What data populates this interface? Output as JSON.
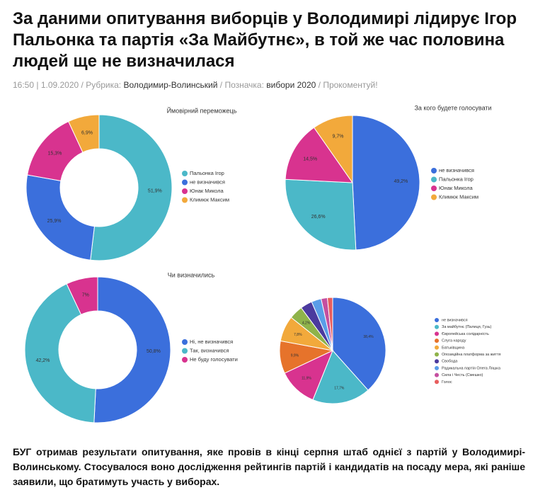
{
  "header": {
    "title": "За даними опитування виборців у Володимирі лідирує Ігор Пальонка та партія «За Майбутнє», в той же час половина людей ще не визначилася"
  },
  "meta": [
    "16:50 | 1.09.2020 /",
    "Рубрика:",
    "Володимир-Волинський",
    "/ Позначка:",
    "вибори 2020",
    "/ Прокоментуй!"
  ],
  "chart_data": [
    {
      "type": "pie",
      "donut": true,
      "title": "Ймовірний переможець",
      "categories": [
        "Пальонка Ігор",
        "не визначився",
        "Юнак Микола",
        "Климюк Максим"
      ],
      "values": [
        51.9,
        25.9,
        15.3,
        6.9
      ],
      "value_labels": [
        "51,9%",
        "25,9%",
        "15,3%",
        "6,9%"
      ],
      "colors": [
        "#4bb8c8",
        "#3b6fdc",
        "#d8338f",
        "#f2a93b"
      ]
    },
    {
      "type": "pie",
      "donut": false,
      "title": "За кого будете голосувати",
      "categories": [
        "не визначився",
        "Пальонка Ігор",
        "Юнак Микола",
        "Климюк Максим"
      ],
      "values": [
        49.2,
        26.6,
        14.5,
        9.7
      ],
      "value_labels": [
        "49,2%",
        "26,6%",
        "14,5%",
        "9,7%"
      ],
      "colors": [
        "#3b6fdc",
        "#4bb8c8",
        "#d8338f",
        "#f2a93b"
      ]
    },
    {
      "type": "pie",
      "donut": true,
      "title": "Чи визначились",
      "categories": [
        "Ні, не визначився",
        "Так, визначився",
        "Не буду голосувати"
      ],
      "values": [
        50.8,
        42.2,
        7
      ],
      "value_labels": [
        "50,8%",
        "42,2%",
        "7%"
      ],
      "colors": [
        "#3b6fdc",
        "#4bb8c8",
        "#d8338f"
      ]
    },
    {
      "type": "pie",
      "donut": false,
      "categories": [
        "не визначився",
        "За майбутнє (Палиця, Гузь)",
        "Європейська солідарність",
        "Слуга народу",
        "Батьківщина",
        "Опозиційна платформа за життя",
        "Свобода",
        "Радикальна партія Олега Ляшка",
        "Сила і Честь (Смешко)",
        "Голос"
      ],
      "values": [
        38.4,
        17.7,
        11.9,
        9.9,
        7.8,
        4.2,
        3.6,
        3.0,
        1.9,
        1.6
      ],
      "value_labels": [
        "38,4%",
        "17,7%",
        "11,9%",
        "9,9%",
        "7,8%",
        "4,2%",
        null,
        null,
        null,
        null
      ],
      "colors": [
        "#3b6fdc",
        "#4bb8c8",
        "#d8338f",
        "#e6732b",
        "#f2a93b",
        "#8fb34a",
        "#4b3a9e",
        "#5a9de8",
        "#c54fa0",
        "#e85d5d"
      ]
    }
  ],
  "article": {
    "paragraph": "БУГ отримав результати опитування, яке провів в кінці серпня штаб однієї з партій у Володимирі-Волинському. Стосувалося воно дослідження рейтингів партій і кандидатів на посаду мера, які раніше заявили, що братимуть участь у виборах."
  }
}
